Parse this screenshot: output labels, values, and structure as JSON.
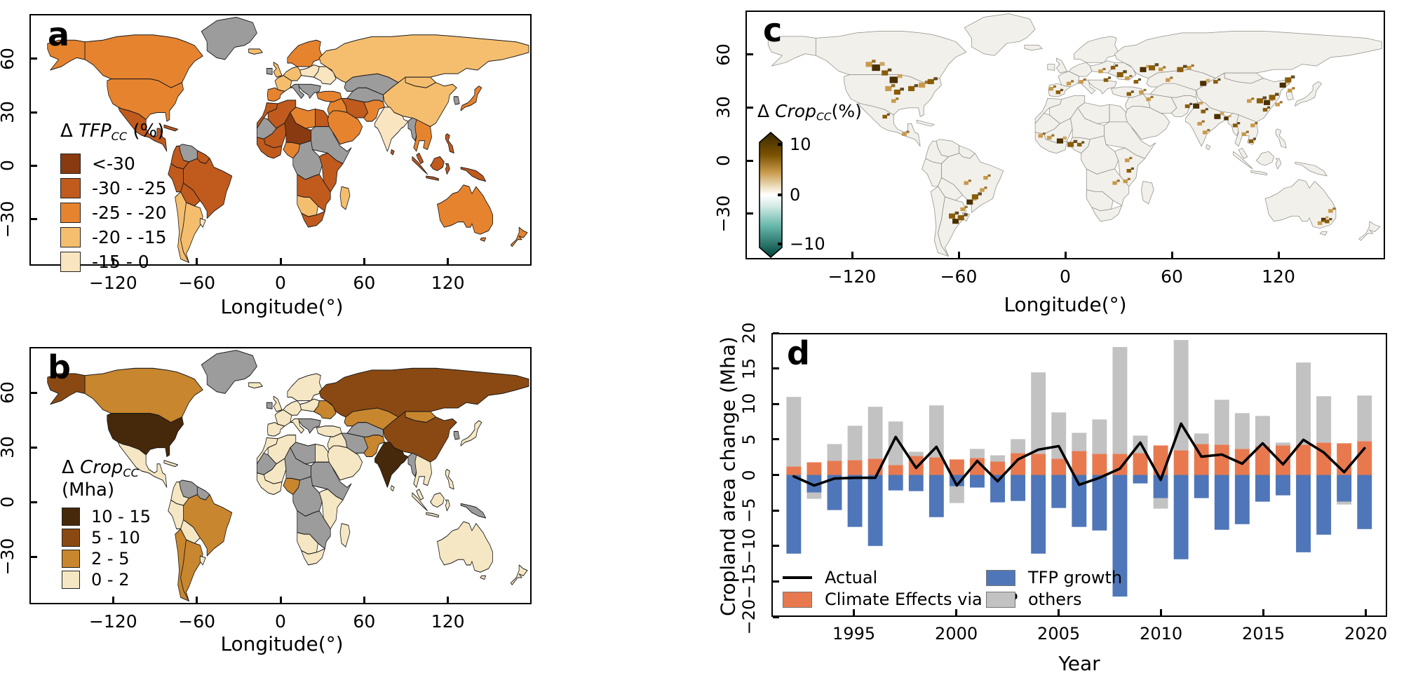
{
  "figure": {
    "background": "#ffffff"
  },
  "axes": {
    "lon_axis_label": "Longitude(°)",
    "map_x_ticks": {
      "values": [
        -120,
        -60,
        0,
        60,
        120
      ],
      "labels": [
        "−120",
        "−60",
        "0",
        "60",
        "120"
      ]
    },
    "map_y_ticks": {
      "values": [
        60,
        30,
        0,
        -30
      ],
      "labels": [
        "60",
        "30",
        "0",
        "−30"
      ]
    }
  },
  "panel_a": {
    "letter": "a",
    "legend": {
      "delta": "Δ",
      "name": "TFP",
      "sub": "CC",
      "unit": "(%)",
      "items": [
        {
          "label": "<-30",
          "class": "c1"
        },
        {
          "label": "-30 - -25",
          "class": "c2"
        },
        {
          "label": "-25 - -20",
          "class": "c3"
        },
        {
          "label": "-20 - -15",
          "class": "c4"
        },
        {
          "label": "-15 - 0",
          "class": "c5"
        }
      ]
    },
    "palette": {
      "c1": "#8A3A10",
      "c2": "#C05A1D",
      "c3": "#E6832F",
      "c4": "#F5BE6E",
      "c5": "#FAE5C1",
      "na": "#9C9C9C"
    },
    "regions": {
      "greenland": "na",
      "alaska": "c3",
      "canada": "c3",
      "usa": "c3",
      "mexico": "c2",
      "cuba": "c2",
      "iceland": "c4",
      "venezuela": "na",
      "colombia": "c2",
      "guyanas": "c2",
      "brazil": "c2",
      "peru": "c2",
      "bolivia": "c2",
      "chile": "c4",
      "argentina": "c4",
      "uruguay": "c5",
      "uk": "c4",
      "ireland": "na",
      "scandinavia": "c3",
      "iberia": "c3",
      "france": "c4",
      "centraleurope": "c4",
      "poland": "c5",
      "easteurope": "c5",
      "balkans": "na",
      "italy": "na",
      "morocco": "c2",
      "algeria": "c2",
      "libya": "c3",
      "egypt": "c2",
      "wsahara": "na",
      "mali": "c2",
      "niger": "c1",
      "sudanhorn": "na",
      "nigeria": "c3",
      "westafrica": "c2",
      "centralafrica": "na",
      "eastafrica": "c2",
      "southcentral": "c2",
      "namibia": "c4",
      "southafrica": "c2",
      "madagascar": "c4",
      "turkey": "c3",
      "levant": "c3",
      "saudi": "c3",
      "iran": "c2",
      "afghanpak": "c3",
      "centralasia": "na",
      "kazakhstan": "na",
      "russia": "c4",
      "mongolia": "c4",
      "china": "c4",
      "korea": "na",
      "japan": "c3",
      "india": "c5",
      "srilanka": "c2",
      "myanmar": "na",
      "seasia": "c3",
      "malaya": "c2",
      "sumatra": "c2",
      "java": "c2",
      "borneo": "c2",
      "sulawesi": "c2",
      "newguinea": "c2",
      "philippines": "c2",
      "australia": "c3",
      "tasmania": "c3",
      "newzealand": "c3"
    }
  },
  "panel_b": {
    "letter": "b",
    "legend": {
      "delta": "Δ",
      "name": "Crop",
      "sub": "CC",
      "unit": "(Mha)",
      "items": [
        {
          "label": "10 - 15",
          "class": "b1"
        },
        {
          "label": "5 - 10",
          "class": "b2"
        },
        {
          "label": "2 - 5",
          "class": "b3"
        },
        {
          "label": "0 - 2",
          "class": "b4"
        }
      ]
    },
    "palette": {
      "b1": "#46280B",
      "b2": "#8A4913",
      "b3": "#C8862E",
      "b4": "#F5E7C3",
      "na": "#9C9C9C"
    },
    "regions": {
      "greenland": "na",
      "alaska": "b2",
      "canada": "b3",
      "usa": "b1",
      "mexico": "b4",
      "cuba": "b4",
      "iceland": "b4",
      "venezuela": "na",
      "colombia": "b4",
      "guyanas": "na",
      "brazil": "b3",
      "peru": "b4",
      "bolivia": "b4",
      "chile": "b3",
      "argentina": "b3",
      "uruguay": "b4",
      "uk": "b4",
      "ireland": "na",
      "scandinavia": "b4",
      "iberia": "b4",
      "france": "b4",
      "centraleurope": "b4",
      "poland": "b4",
      "easteurope": "b3",
      "balkans": "na",
      "italy": "b4",
      "morocco": "b4",
      "algeria": "b4",
      "libya": "na",
      "egypt": "b4",
      "wsahara": "na",
      "mali": "b4",
      "niger": "na",
      "sudanhorn": "na",
      "nigeria": "b3",
      "westafrica": "b4",
      "centralafrica": "na",
      "eastafrica": "b4",
      "southcentral": "na",
      "namibia": "b4",
      "southafrica": "b4",
      "madagascar": "b4",
      "turkey": "b4",
      "levant": "b4",
      "saudi": "b4",
      "iran": "na",
      "afghanpak": "b3",
      "centralasia": "na",
      "kazakhstan": "b3",
      "russia": "b2",
      "mongolia": "b3",
      "china": "b2",
      "korea": "na",
      "japan": "b4",
      "india": "b1",
      "srilanka": "b4",
      "myanmar": "na",
      "seasia": "b4",
      "malaya": "b4",
      "sumatra": "b4",
      "java": "b4",
      "borneo": "b4",
      "sulawesi": "b4",
      "newguinea": "na",
      "philippines": "b4",
      "australia": "b4",
      "tasmania": "b4",
      "newzealand": "b4"
    }
  },
  "panel_c": {
    "letter": "c",
    "legend": {
      "delta": "Δ",
      "name": "Crop",
      "sub": "CC",
      "unit": "(%)",
      "top_label": "10",
      "mid_label": "0",
      "bottom_label": "−10",
      "top_color": "#3A2800",
      "mid_color": "#FFFFFF",
      "bottom_color": "#00443C"
    },
    "land_color": "#F2F0EB",
    "border_color": "#8F8E88",
    "speckle_colors": [
      "#4A3000",
      "#8A5C08",
      "#C9994A"
    ],
    "hotspots": [
      [
        -107,
        53,
        3,
        0
      ],
      [
        -111,
        55,
        2,
        2
      ],
      [
        -102,
        50,
        2,
        1
      ],
      [
        -97,
        46,
        3,
        0
      ],
      [
        -100,
        41,
        2,
        2
      ],
      [
        -95,
        39,
        2,
        1
      ],
      [
        -87,
        41,
        2,
        1
      ],
      [
        -81,
        43,
        2,
        2
      ],
      [
        -76,
        45,
        2,
        1
      ],
      [
        -97,
        34,
        1,
        2
      ],
      [
        -102,
        25,
        1,
        1
      ],
      [
        -91,
        15,
        1,
        2
      ],
      [
        -62,
        -35,
        2,
        0
      ],
      [
        -64,
        -32,
        2,
        1
      ],
      [
        -59,
        -33,
        2,
        1
      ],
      [
        -58,
        -28,
        1,
        2
      ],
      [
        -54,
        -24,
        2,
        0
      ],
      [
        -51,
        -21,
        2,
        1
      ],
      [
        -47,
        -17,
        1,
        2
      ],
      [
        -56,
        -13,
        1,
        2
      ],
      [
        -45,
        -10,
        1,
        2
      ],
      [
        -8,
        41,
        1,
        2
      ],
      [
        -4,
        39,
        1,
        1
      ],
      [
        2,
        44,
        1,
        2
      ],
      [
        9,
        45,
        1,
        2
      ],
      [
        23,
        46,
        1,
        1
      ],
      [
        31,
        49,
        2,
        1
      ],
      [
        35,
        47,
        1,
        2
      ],
      [
        27,
        53,
        1,
        1
      ],
      [
        20,
        51,
        1,
        2
      ],
      [
        44,
        52,
        2,
        0
      ],
      [
        49,
        53,
        2,
        1
      ],
      [
        54,
        52,
        1,
        2
      ],
      [
        40,
        45,
        1,
        1
      ],
      [
        43,
        39,
        1,
        2
      ],
      [
        36,
        38,
        1,
        1
      ],
      [
        47,
        35,
        1,
        2
      ],
      [
        58,
        46,
        1,
        2
      ],
      [
        65,
        52,
        2,
        1
      ],
      [
        70,
        53,
        1,
        2
      ],
      [
        78,
        44,
        2,
        0
      ],
      [
        85,
        45,
        1,
        1
      ],
      [
        69,
        31,
        1,
        1
      ],
      [
        74,
        31,
        2,
        0
      ],
      [
        78,
        28,
        1,
        1
      ],
      [
        76,
        21,
        1,
        2
      ],
      [
        86,
        25,
        2,
        0
      ],
      [
        91,
        24,
        1,
        0
      ],
      [
        79,
        16,
        1,
        2
      ],
      [
        96,
        20,
        1,
        1
      ],
      [
        101,
        15,
        1,
        2
      ],
      [
        105,
        11,
        1,
        1
      ],
      [
        106,
        20,
        1,
        2
      ],
      [
        104,
        34,
        1,
        2
      ],
      [
        110,
        34,
        2,
        1
      ],
      [
        114,
        33,
        2,
        0
      ],
      [
        117,
        36,
        2,
        1
      ],
      [
        113,
        29,
        1,
        1
      ],
      [
        120,
        32,
        1,
        2
      ],
      [
        123,
        43,
        2,
        0
      ],
      [
        126,
        46,
        2,
        1
      ],
      [
        127,
        40,
        1,
        2
      ],
      [
        35,
        0,
        1,
        2
      ],
      [
        36,
        -6,
        1,
        1
      ],
      [
        34,
        -12,
        1,
        2
      ],
      [
        28,
        -13,
        1,
        2
      ],
      [
        -3,
        11,
        2,
        0
      ],
      [
        3,
        9,
        2,
        1
      ],
      [
        -9,
        13,
        1,
        2
      ],
      [
        8,
        9,
        1,
        1
      ],
      [
        -14,
        14,
        1,
        2
      ],
      [
        146,
        -34,
        1,
        0
      ],
      [
        148,
        -35,
        1,
        1
      ],
      [
        144,
        -36,
        1,
        2
      ],
      [
        150,
        -29,
        1,
        2
      ]
    ]
  },
  "chart_data": {
    "type": "bar",
    "panel_letter": "d",
    "title": "",
    "xlabel": "Year",
    "ylabel": "Cropland area change (Mha)",
    "ylim": [
      -20,
      20
    ],
    "x": [
      1992,
      1993,
      1994,
      1995,
      1996,
      1997,
      1998,
      1999,
      2000,
      2001,
      2002,
      2003,
      2004,
      2005,
      2006,
      2007,
      2008,
      2009,
      2010,
      2011,
      2012,
      2013,
      2014,
      2015,
      2016,
      2017,
      2018,
      2019,
      2020
    ],
    "series": [
      {
        "name": "Climate Effects via TFP",
        "type": "bar",
        "color": "#E8794F",
        "values": [
          1.2,
          1.8,
          2.0,
          2.1,
          2.3,
          1.4,
          2.7,
          2.5,
          2.2,
          2.4,
          1.9,
          3.1,
          3.0,
          2.3,
          3.4,
          3.0,
          3.0,
          3.1,
          4.2,
          3.5,
          4.4,
          4.3,
          3.7,
          4.1,
          4.2,
          4.3,
          4.6,
          4.5,
          4.8
        ]
      },
      {
        "name": "TFP growth",
        "type": "bar",
        "color": "#4F76B8",
        "values": [
          -11.2,
          -2.5,
          -5.0,
          -7.4,
          -10.1,
          -2.2,
          -2.3,
          -6.0,
          -1.6,
          -1.8,
          -3.9,
          -3.7,
          -11.2,
          -4.7,
          -7.4,
          -7.9,
          -17.3,
          -1.2,
          -3.3,
          -12.0,
          -3.3,
          -7.8,
          -7.0,
          -3.8,
          -2.9,
          -11.0,
          -8.5,
          -3.8,
          -7.7
        ]
      },
      {
        "name": "others",
        "type": "bar",
        "color": "#C2C2C2",
        "values": [
          9.9,
          -0.9,
          2.4,
          4.9,
          7.4,
          6.2,
          0.6,
          7.4,
          -2.4,
          1.3,
          0.9,
          2.0,
          11.6,
          6.6,
          2.6,
          4.9,
          15.2,
          2.5,
          -1.5,
          15.7,
          1.5,
          6.4,
          5.1,
          4.3,
          0.4,
          11.7,
          6.6,
          -0.4,
          6.5
        ]
      },
      {
        "name": "Actual",
        "type": "line",
        "color": "#000000",
        "values": [
          -0.2,
          -1.5,
          -0.5,
          -0.4,
          -0.4,
          5.4,
          1.0,
          4.0,
          -1.5,
          2.0,
          -0.9,
          2.2,
          3.6,
          4.1,
          -1.4,
          -0.4,
          0.9,
          4.6,
          -0.7,
          7.3,
          2.6,
          2.9,
          1.6,
          4.5,
          1.5,
          5.0,
          3.2,
          0.4,
          3.8
        ]
      }
    ],
    "y_ticks": {
      "values": [
        20,
        15,
        10,
        5,
        0,
        -5,
        -10,
        -15,
        -20
      ],
      "labels": [
        "20",
        "15",
        "10",
        "5",
        "0",
        "−5",
        "−10",
        "−15",
        "−20"
      ]
    },
    "x_ticks": {
      "values": [
        1995,
        2000,
        2005,
        2010,
        2015,
        2020
      ],
      "labels": [
        "1995",
        "2000",
        "2005",
        "2010",
        "2015",
        "2020"
      ]
    },
    "legend": [
      {
        "label": "Actual",
        "type": "line",
        "color": "#000000"
      },
      {
        "label": "Climate Effects via TFP",
        "type": "box",
        "color": "#E8794F"
      },
      {
        "label": "TFP growth",
        "type": "box",
        "color": "#4F76B8"
      },
      {
        "label": "others",
        "type": "box",
        "color": "#C2C2C2"
      }
    ]
  }
}
